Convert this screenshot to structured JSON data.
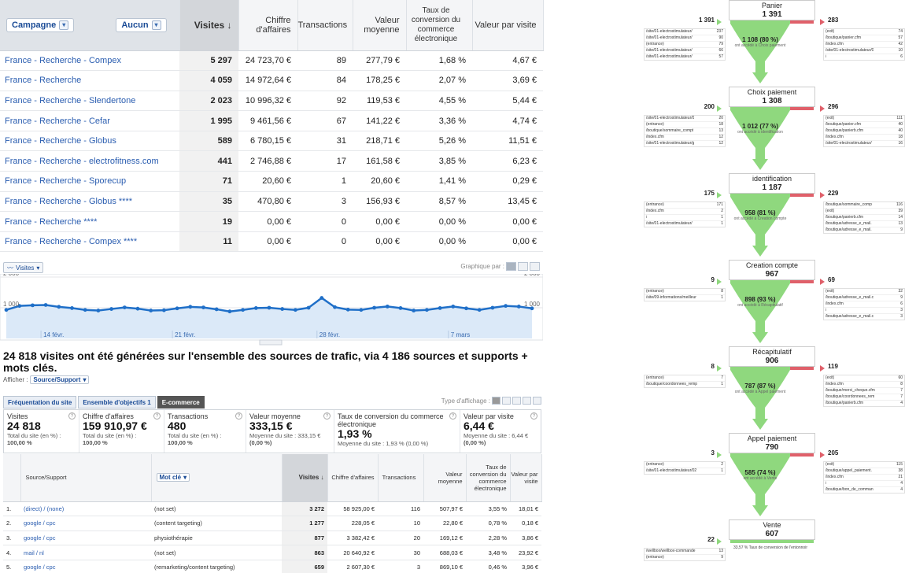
{
  "campaign_table": {
    "selector_primary": "Campagne",
    "selector_secondary": "Aucun",
    "headers": {
      "visits": "Visites ↓",
      "revenue": "Chiffre d'affaires",
      "transactions": "Transactions",
      "avg_value": "Valeur moyenne",
      "conv_rate": "Taux de conversion du commerce électronique",
      "per_visit": "Valeur par visite"
    },
    "rows": [
      {
        "name": "France - Recherche - Compex",
        "visits": "5 297",
        "revenue": "24 723,70 €",
        "transactions": "89",
        "avg_value": "277,79 €",
        "conv_rate": "1,68 %",
        "per_visit": "4,67 €"
      },
      {
        "name": "France - Recherche",
        "visits": "4 059",
        "revenue": "14 972,64 €",
        "transactions": "84",
        "avg_value": "178,25 €",
        "conv_rate": "2,07 %",
        "per_visit": "3,69 €"
      },
      {
        "name": "France - Recherche - Slendertone",
        "visits": "2 023",
        "revenue": "10 996,32 €",
        "transactions": "92",
        "avg_value": "119,53 €",
        "conv_rate": "4,55 %",
        "per_visit": "5,44 €"
      },
      {
        "name": "France - Recherche - Cefar",
        "visits": "1 995",
        "revenue": "9 461,56 €",
        "transactions": "67",
        "avg_value": "141,22 €",
        "conv_rate": "3,36 %",
        "per_visit": "4,74 €"
      },
      {
        "name": "France - Recherche - Globus",
        "visits": "589",
        "revenue": "6 780,15 €",
        "transactions": "31",
        "avg_value": "218,71 €",
        "conv_rate": "5,26 %",
        "per_visit": "11,51 €"
      },
      {
        "name": "France - Recherche - electrofitness.com",
        "visits": "441",
        "revenue": "2 746,88 €",
        "transactions": "17",
        "avg_value": "161,58 €",
        "conv_rate": "3,85 %",
        "per_visit": "6,23 €"
      },
      {
        "name": "France - Recherche - Sporecup",
        "visits": "71",
        "revenue": "20,60 €",
        "transactions": "1",
        "avg_value": "20,60 €",
        "conv_rate": "1,41 %",
        "per_visit": "0,29 €"
      },
      {
        "name": "France - Recherche - Globus ****",
        "visits": "35",
        "revenue": "470,80 €",
        "transactions": "3",
        "avg_value": "156,93 €",
        "conv_rate": "8,57 %",
        "per_visit": "13,45 €"
      },
      {
        "name": "France - Recherche ****",
        "visits": "19",
        "revenue": "0,00 €",
        "transactions": "0",
        "avg_value": "0,00 €",
        "conv_rate": "0,00 %",
        "per_visit": "0,00 €"
      },
      {
        "name": "France - Recherche - Compex ****",
        "visits": "11",
        "revenue": "0,00 €",
        "transactions": "0",
        "avg_value": "0,00 €",
        "conv_rate": "0,00 %",
        "per_visit": "0,00 €"
      }
    ]
  },
  "chart": {
    "metric_tab": "Visites",
    "graph_by_label": "Graphique par :"
  },
  "chart_data": {
    "type": "line",
    "ylim": [
      0,
      2000
    ],
    "y_tick_labels": [
      "2 000",
      "1 000"
    ],
    "x_tick_labels": [
      "14 févr.",
      "21 févr.",
      "28 févr.",
      "7 mars"
    ],
    "series": [
      {
        "values": [
          930,
          1060,
          1080,
          1090,
          1030,
          990,
          930,
          910,
          960,
          1010,
          970,
          910,
          920,
          980,
          1030,
          1010,
          950,
          880,
          930,
          990,
          1000,
          960,
          930,
          1000,
          1320,
          1020,
          940,
          930,
          1000,
          1040,
          990,
          910,
          930,
          990,
          1040,
          980,
          930,
          1000,
          1060,
          1040,
          980
        ]
      }
    ]
  },
  "headline": "24 818 visites ont été générées sur l'ensemble des sources de trafic, via 4 186 sources et supports + mots clés.",
  "afficher": {
    "label": "Afficher :",
    "value": "Source/Support"
  },
  "tabs": [
    "Fréquentation du site",
    "Ensemble d'objectifs 1",
    "E-commerce"
  ],
  "type_affichage_label": "Type d'affichage :",
  "metrics": [
    {
      "label": "Visites",
      "value": "24 818",
      "sub1": "Total du site (en %) :",
      "sub2": "100,00 %"
    },
    {
      "label": "Chiffre d'affaires",
      "value": "159 910,97 €",
      "sub1": "Total du site (en %) :",
      "sub2": "100,00 %"
    },
    {
      "label": "Transactions",
      "value": "480",
      "sub1": "Total du site (en %) :",
      "sub2": "100,00 %"
    },
    {
      "label": "Valeur moyenne",
      "value": "333,15 €",
      "sub1": "Moyenne du site : 333,15 €",
      "sub2": "(0,00 %)"
    },
    {
      "label": "Taux de conversion du commerce électronique",
      "value": "1,93 %",
      "sub1": "Moyenne du site : 1,93 % (0,00 %)",
      "sub2": ""
    },
    {
      "label": "Valeur par visite",
      "value": "6,44 €",
      "sub1": "Moyenne du site : 6,44 €",
      "sub2": "(0,00 %)"
    }
  ],
  "source_table": {
    "headers": {
      "source": "Source/Support",
      "keyword": "Mot clé",
      "visits": "Visites ↓",
      "revenue": "Chiffre d'affaires",
      "transactions": "Transactions",
      "avg_value": "Valeur moyenne",
      "conv_rate": "Taux de conversion du commerce électronique",
      "per_visit": "Valeur par visite"
    },
    "rows": [
      {
        "idx": "1.",
        "source": "(direct) / (none)",
        "keyword": "(not set)",
        "visits": "3 272",
        "revenue": "58 925,00 €",
        "transactions": "116",
        "avg_value": "507,97 €",
        "conv_rate": "3,55 %",
        "per_visit": "18,01 €"
      },
      {
        "idx": "2.",
        "source": "google / cpc",
        "keyword": "(content targeting)",
        "visits": "1 277",
        "revenue": "228,05 €",
        "transactions": "10",
        "avg_value": "22,80 €",
        "conv_rate": "0,78 %",
        "per_visit": "0,18 €"
      },
      {
        "idx": "3.",
        "source": "google / cpc",
        "keyword": "physiothérapie",
        "visits": "877",
        "revenue": "3 382,42 €",
        "transactions": "20",
        "avg_value": "169,12 €",
        "conv_rate": "2,28 %",
        "per_visit": "3,86 €"
      },
      {
        "idx": "4.",
        "source": "mail / nl",
        "keyword": "(not set)",
        "visits": "863",
        "revenue": "20 640,92 €",
        "transactions": "30",
        "avg_value": "688,03 €",
        "conv_rate": "3,48 %",
        "per_visit": "23,92 €"
      },
      {
        "idx": "5.",
        "source": "google / cpc",
        "keyword": "(remarketing/content targeting)",
        "visits": "659",
        "revenue": "2 607,30 €",
        "transactions": "3",
        "avg_value": "869,10 €",
        "conv_rate": "0,46 %",
        "per_visit": "3,96 €"
      }
    ]
  },
  "funnel": {
    "stages": [
      {
        "name": "Panier",
        "value": "1 391",
        "in_value": "1 391",
        "out_value": "283",
        "conv_value": "1 108 (80 %)",
        "conv_desc": "ont accédé à Choix paiement",
        "in_rows": [
          [
            "/site/01-electrostimulateur/",
            "237"
          ],
          [
            "/site/01-electrostimulateur/",
            "90"
          ],
          [
            "(entrance)",
            "79"
          ],
          [
            "/site/01-electrostimulateur/",
            "66"
          ],
          [
            "/site/01-electrostimulateur/",
            "57"
          ]
        ],
        "out_rows": [
          [
            "(exit)",
            "74"
          ],
          [
            "/boutique/panier.cfm",
            "57"
          ],
          [
            "/index.cfm",
            "42"
          ],
          [
            "/site/01-electrostimulateur/0",
            "10"
          ],
          [
            "/",
            "6"
          ]
        ]
      },
      {
        "name": "Choix paiement",
        "value": "1 308",
        "in_value": "200",
        "out_value": "296",
        "conv_value": "1 012 (77 %)",
        "conv_desc": "ont accédé à identification",
        "in_rows": [
          [
            "/site/01-electrostimulateur/0",
            "20"
          ],
          [
            "(entrance)",
            "18"
          ],
          [
            "/boutique/sommaire_compt",
            "13"
          ],
          [
            "/index.cfm",
            "12"
          ],
          [
            "/site/01-electrostimulateur/g",
            "12"
          ]
        ],
        "out_rows": [
          [
            "(exit)",
            "111"
          ],
          [
            "/boutique/panier.cfm",
            "40"
          ],
          [
            "/boutique/panierb.cfm",
            "40"
          ],
          [
            "/index.cfm",
            "18"
          ],
          [
            "/site/01-electrostimulateur/",
            "16"
          ]
        ]
      },
      {
        "name": "identification",
        "value": "1 187",
        "in_value": "175",
        "out_value": "229",
        "conv_value": "958 (81 %)",
        "conv_desc": "ont accédé à Creation compte",
        "in_rows": [
          [
            "(entrance)",
            "171"
          ],
          [
            "/index.cfm",
            "2"
          ],
          [
            "/",
            "1"
          ],
          [
            "/site/01-electrostimulateur/",
            "1"
          ]
        ],
        "out_rows": [
          [
            "/boutique/sommaire_comp",
            "116"
          ],
          [
            "(exit)",
            "39"
          ],
          [
            "/boutique/panierb.cfm",
            "14"
          ],
          [
            "/boutique/adresse_e_mail.",
            "13"
          ],
          [
            "/boutique/adresse_e_mail.",
            "9"
          ]
        ]
      },
      {
        "name": "Creation compte",
        "value": "967",
        "in_value": "9",
        "out_value": "69",
        "conv_value": "898 (93 %)",
        "conv_desc": "ont accédé à Récapitulatif",
        "in_rows": [
          [
            "(entrance)",
            "8"
          ],
          [
            "/site/09-informations/meilleur",
            "1"
          ]
        ],
        "out_rows": [
          [
            "(exit)",
            "32"
          ],
          [
            "/boutique/adresse_e_mail.c",
            "9"
          ],
          [
            "/index.cfm",
            "6"
          ],
          [
            "/",
            "3"
          ],
          [
            "/boutique/adresse_e_mail.c",
            "3"
          ]
        ]
      },
      {
        "name": "Récapitulatif",
        "value": "906",
        "in_value": "8",
        "out_value": "119",
        "conv_value": "787 (87 %)",
        "conv_desc": "ont accédé à Appel paiement",
        "in_rows": [
          [
            "(entrance)",
            "7"
          ],
          [
            "/boutique/coordonnees_remp",
            "1"
          ]
        ],
        "out_rows": [
          [
            "(exit)",
            "60"
          ],
          [
            "/index.cfm",
            "8"
          ],
          [
            "/boutique/merci_cheque.cfm",
            "7"
          ],
          [
            "/boutique/coordonnees_rem",
            "7"
          ],
          [
            "/boutique/panierb.cfm",
            "4"
          ]
        ]
      },
      {
        "name": "Appel paiement",
        "value": "790",
        "in_value": "3",
        "out_value": "205",
        "conv_value": "585 (74 %)",
        "conv_desc": "ont accédé à Vente",
        "in_rows": [
          [
            "(entrance)",
            "2"
          ],
          [
            "/site/01-electrostimulateur/02",
            "1"
          ]
        ],
        "out_rows": [
          [
            "(exit)",
            "115"
          ],
          [
            "/boutique/appel_paiement.",
            "38"
          ],
          [
            "/index.cfm",
            "21"
          ],
          [
            "/",
            "4"
          ],
          [
            "/boutique/bon_de_comman",
            "4"
          ]
        ]
      },
      {
        "name": "Vente",
        "value": "607",
        "in_value": "22",
        "out_value": "",
        "conv_value": "",
        "conv_desc": "",
        "in_rows": [
          [
            "/wellbox/wellbox-commande",
            "13"
          ],
          [
            "(entrance)",
            "9"
          ]
        ],
        "out_rows": []
      }
    ],
    "final_note": "33,57 % Taux de conversion de l'entonnoir"
  },
  "colors": {
    "link": "#2a5db0",
    "funnel_green": "#8fd87e",
    "funnel_red": "#e0606a",
    "chart_line": "#1f6fc8",
    "chart_fill": "#dbe9f8"
  }
}
